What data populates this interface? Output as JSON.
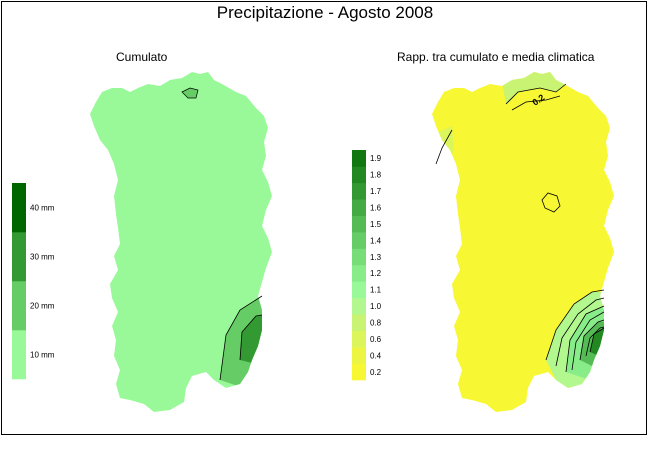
{
  "title": "Precipitazione - Agosto 2008",
  "maps": {
    "cumulato": {
      "title": "Cumulato",
      "base_color": "#99f999",
      "legend": {
        "labels": [
          "10 mm",
          "20 mm",
          "30 mm",
          "40 mm"
        ],
        "colors": [
          "#99f999",
          "#66cc66",
          "#339933",
          "#006600"
        ]
      },
      "contours": [
        10,
        20
      ]
    },
    "rapporto": {
      "title": "Rapp. tra cumulato e media climatica",
      "base_color": "#f7f733",
      "legend": {
        "labels": [
          "0.2",
          "0.4",
          "0.6",
          "0.8",
          "1.0",
          "1.1",
          "1.2",
          "1.3",
          "1.4",
          "1.5",
          "1.6",
          "1.7",
          "1.8",
          "1.9"
        ],
        "colors": [
          "#f7f733",
          "#ecf541",
          "#dcf55a",
          "#c9f473",
          "#b2f88e",
          "#99f999",
          "#88ec88",
          "#77dd77",
          "#66cc66",
          "#55bb55",
          "#44aa44",
          "#339933",
          "#228822",
          "#117711"
        ]
      },
      "contour_label": "0.2"
    }
  }
}
